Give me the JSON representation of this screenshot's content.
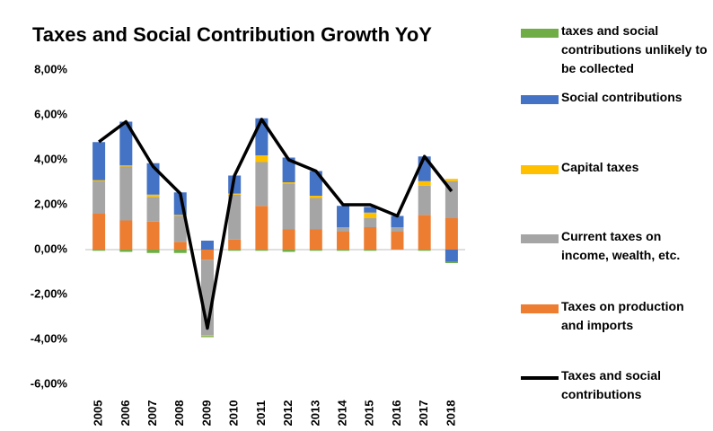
{
  "chart_data": {
    "type": "bar",
    "stacked": true,
    "title": "Taxes and Social Contribution Growth YoY",
    "categories": [
      "2005",
      "2006",
      "2007",
      "2008",
      "2009",
      "2010",
      "2011",
      "2012",
      "2013",
      "2014",
      "2015",
      "2016",
      "2017",
      "2018"
    ],
    "series": [
      {
        "name": "taxes and social contributions unlikely to be collected",
        "type": "bar",
        "color": "#70ad47",
        "values": [
          -0.05,
          -0.1,
          -0.15,
          -0.15,
          -0.05,
          -0.05,
          -0.05,
          -0.1,
          -0.05,
          -0.05,
          -0.05,
          0,
          -0.05,
          -0.05
        ]
      },
      {
        "name": "Social contributions",
        "type": "bar",
        "color": "#4472c4",
        "values": [
          1.7,
          1.95,
          1.4,
          1.0,
          0.4,
          0.8,
          1.65,
          1.1,
          1.1,
          0.95,
          0.25,
          0.5,
          1.1,
          -0.55
        ]
      },
      {
        "name": "Capital taxes",
        "type": "bar",
        "color": "#ffc000",
        "values": [
          0.05,
          0.05,
          0.1,
          0.05,
          -0.05,
          0.05,
          0.3,
          0.05,
          0.1,
          0,
          0.25,
          0,
          0.2,
          0.1
        ]
      },
      {
        "name": "Current taxes on income, wealth, etc.",
        "type": "bar",
        "color": "#a5a5a5",
        "values": [
          1.44,
          2.4,
          1.1,
          1.15,
          -3.35,
          2.0,
          1.95,
          2.05,
          1.4,
          0.2,
          0.4,
          0.2,
          1.3,
          1.65
        ]
      },
      {
        "name": "Taxes on production and imports",
        "type": "bar",
        "color": "#ed7d31",
        "values": [
          1.6,
          1.3,
          1.25,
          0.35,
          -0.45,
          0.45,
          1.95,
          0.9,
          0.9,
          0.8,
          1.0,
          0.8,
          1.55,
          1.4
        ]
      },
      {
        "name": "Taxes and social contributions",
        "type": "line",
        "color": "#000000",
        "values": [
          4.8,
          5.7,
          3.7,
          2.5,
          -3.5,
          3.3,
          5.8,
          4.0,
          3.5,
          2.0,
          2.0,
          1.5,
          4.15,
          2.6
        ]
      }
    ],
    "ylim": [
      -6,
      8
    ],
    "yticks": [
      {
        "value": -6,
        "label": "-6,00%"
      },
      {
        "value": -4,
        "label": "-4,00%"
      },
      {
        "value": -2,
        "label": "-2,00%"
      },
      {
        "value": 0,
        "label": "0,00%"
      },
      {
        "value": 2,
        "label": "2,00%"
      },
      {
        "value": 4,
        "label": "4,00%"
      },
      {
        "value": 6,
        "label": "6,00%"
      },
      {
        "value": 8,
        "label": "8,00%"
      }
    ],
    "grid": false,
    "legend": "right"
  }
}
